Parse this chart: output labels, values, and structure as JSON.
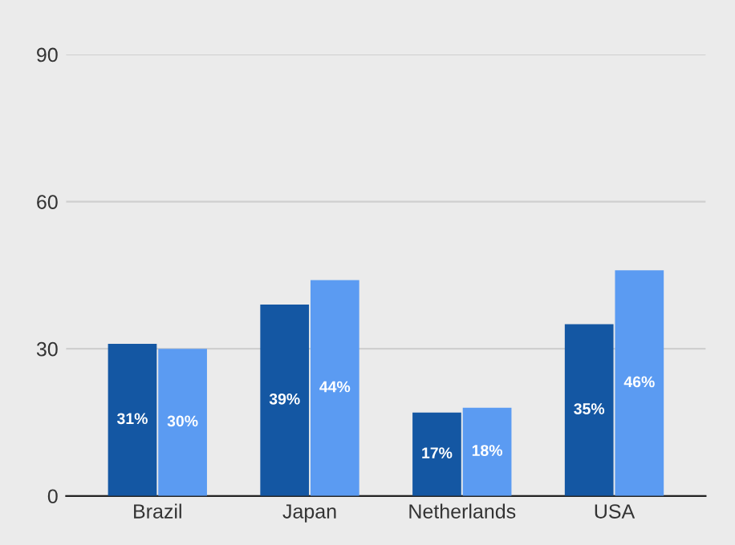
{
  "chart_data": {
    "type": "bar",
    "categories": [
      "Brazil",
      "Japan",
      "Netherlands",
      "USA"
    ],
    "series": [
      {
        "color": "#1457a3",
        "values": [
          31,
          39,
          17,
          35
        ],
        "value_labels": [
          "31%",
          "39%",
          "17%",
          "35%"
        ]
      },
      {
        "color": "#5b9bf2",
        "values": [
          30,
          44,
          18,
          46
        ],
        "value_labels": [
          "30%",
          "44%",
          "18%",
          "46%"
        ]
      }
    ],
    "ylim": [
      0,
      90
    ],
    "yticks": [
      0,
      30,
      60,
      90
    ],
    "grid": "y"
  }
}
